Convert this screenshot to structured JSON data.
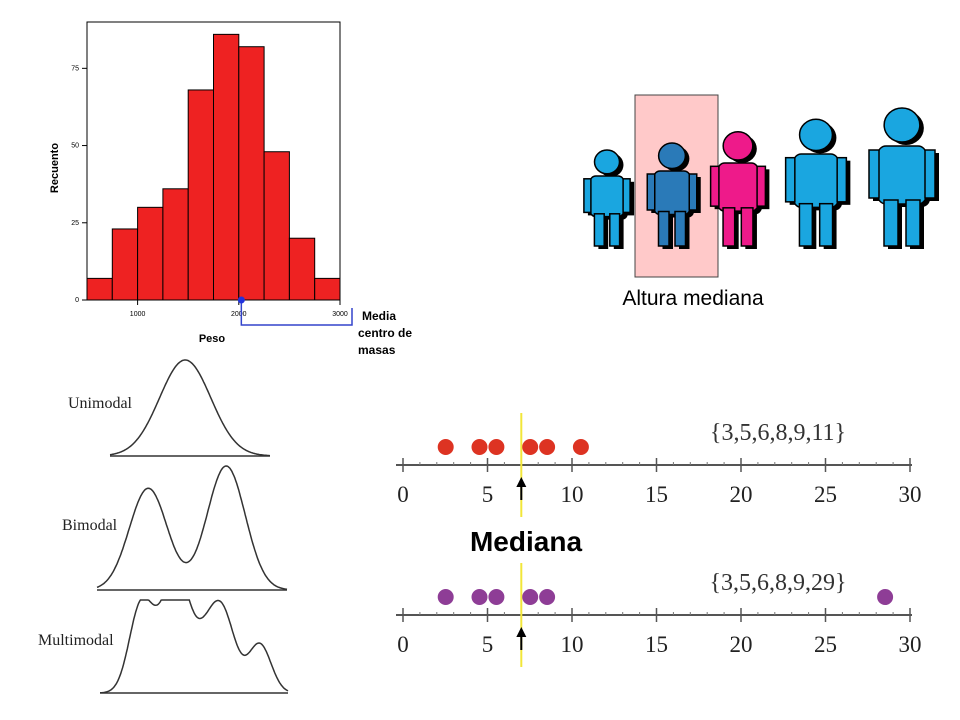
{
  "histogram": {
    "chart_data": {
      "type": "bar",
      "bins": [
        {
          "from": 500,
          "to": 750,
          "value": 7
        },
        {
          "from": 750,
          "to": 1000,
          "value": 23
        },
        {
          "from": 1000,
          "to": 1250,
          "value": 30
        },
        {
          "from": 1250,
          "to": 1500,
          "value": 36
        },
        {
          "from": 1500,
          "to": 1750,
          "value": 68
        },
        {
          "from": 1750,
          "to": 2000,
          "value": 86
        },
        {
          "from": 2000,
          "to": 2250,
          "value": 82
        },
        {
          "from": 2250,
          "to": 2500,
          "value": 48
        },
        {
          "from": 2500,
          "to": 2750,
          "value": 20
        },
        {
          "from": 2750,
          "to": 3000,
          "value": 7
        }
      ],
      "xlabel": "Peso",
      "ylabel": "Recuento",
      "xticks": [
        "1000",
        "2000",
        "3000"
      ],
      "yticks": [
        "0",
        "25",
        "50",
        "75"
      ],
      "xlim": [
        500,
        3000
      ],
      "ylim": [
        0,
        90
      ],
      "mean_marker": 2025,
      "bar_color": "#ee2222"
    },
    "annotation": [
      "Media",
      "centro de",
      "masas"
    ]
  },
  "people": {
    "caption": "Altura mediana",
    "highlight_color": "#ffc9c9",
    "figures": [
      {
        "color": "#1aa6e0",
        "height": 0.7
      },
      {
        "color": "#2a7ab8",
        "height": 0.75
      },
      {
        "color": "#ee1a8a",
        "height": 0.83
      },
      {
        "color": "#1aa6e0",
        "height": 0.92
      },
      {
        "color": "#1aa6e0",
        "height": 1.0
      }
    ]
  },
  "modality": {
    "labels": [
      "Unimodal",
      "Bimodal",
      "Multimodal"
    ]
  },
  "median": {
    "title": "Mediana",
    "chart_data": [
      {
        "type": "scatter",
        "set_label": "{3,5,6,8,9,11}",
        "x": [
          3,
          5,
          6,
          8,
          9,
          11
        ],
        "median": 7,
        "color": "#dd3322",
        "xlim": [
          0,
          30
        ],
        "xticks": [
          "0",
          "5",
          "10",
          "15",
          "20",
          "25",
          "30"
        ]
      },
      {
        "type": "scatter",
        "set_label": "{3,5,6,8,9,29}",
        "x": [
          3,
          5,
          6,
          8,
          9,
          29
        ],
        "median": 7,
        "color": "#8e3d96",
        "xlim": [
          0,
          30
        ],
        "xticks": [
          "0",
          "5",
          "10",
          "15",
          "20",
          "25",
          "30"
        ]
      }
    ],
    "median_line_color": "#f2e63a"
  }
}
